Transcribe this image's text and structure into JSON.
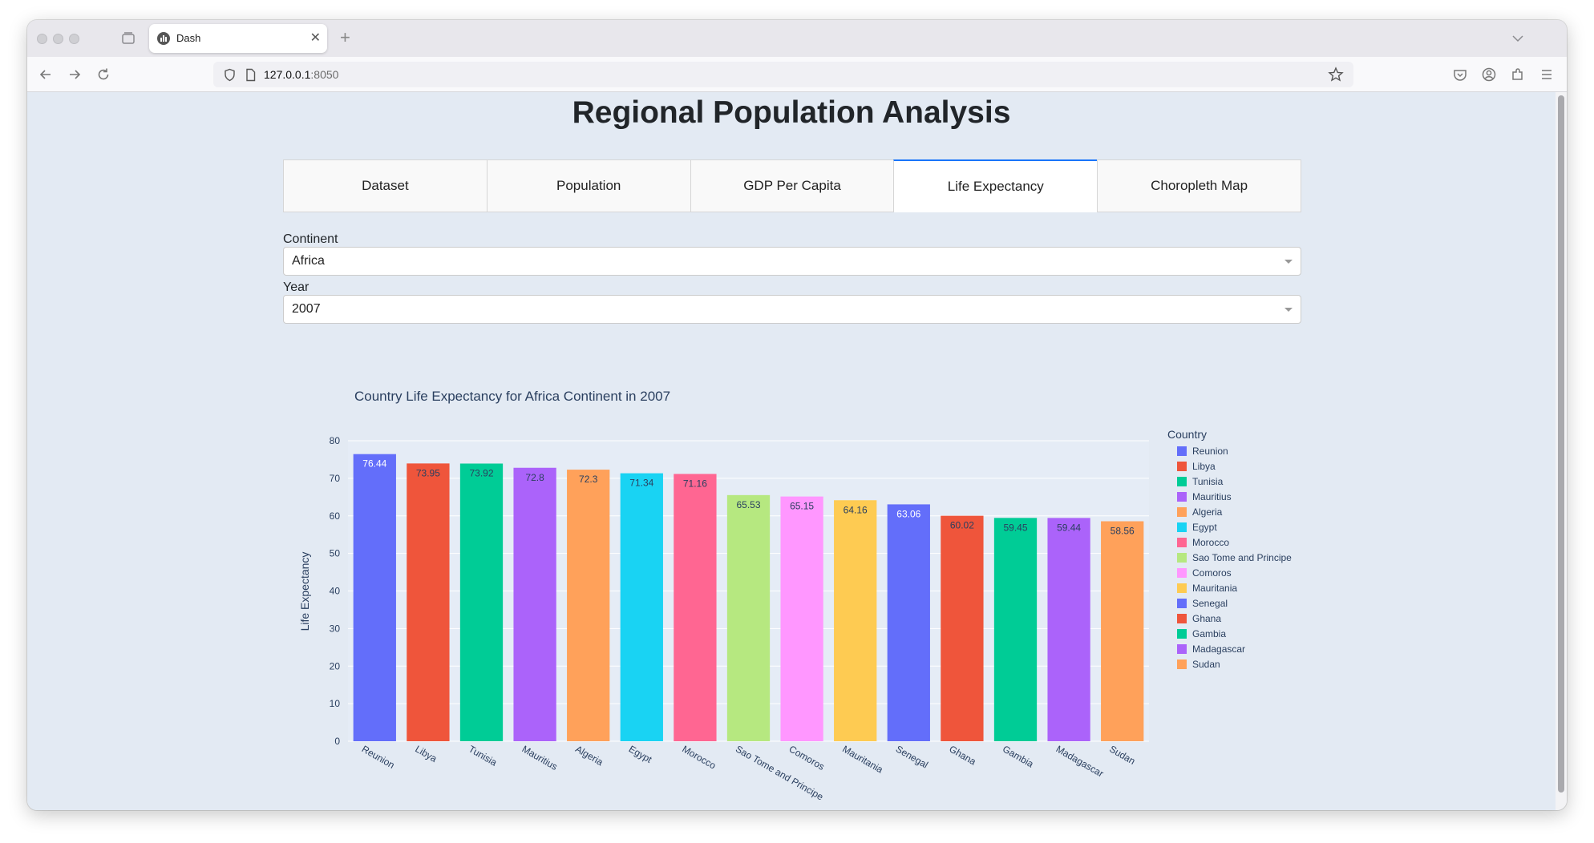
{
  "browser": {
    "tab_title": "Dash",
    "url_host": "127.0.0.1",
    "url_port": ":8050"
  },
  "page": {
    "heading": "Regional Population Analysis",
    "tabs": [
      {
        "label": "Dataset",
        "active": false
      },
      {
        "label": "Population",
        "active": false
      },
      {
        "label": "GDP Per Capita",
        "active": false
      },
      {
        "label": "Life Expectancy",
        "active": true
      },
      {
        "label": "Choropleth Map",
        "active": false
      }
    ],
    "continent_label": "Continent",
    "continent_value": "Africa",
    "year_label": "Year",
    "year_value": "2007"
  },
  "colors": {
    "accent": "#1975fa",
    "plot_bg": "#e5ecf6"
  },
  "chart_data": {
    "type": "bar",
    "title": "Country Life Expectancy for Africa Continent in 2007",
    "xlabel": "",
    "ylabel": "Life Expectancy",
    "ylim": [
      0,
      80
    ],
    "yticks": [
      0,
      10,
      20,
      30,
      40,
      50,
      60,
      70,
      80
    ],
    "legend_title": "Country",
    "legend_position": "right",
    "categories": [
      "Reunion",
      "Libya",
      "Tunisia",
      "Mauritius",
      "Algeria",
      "Egypt",
      "Morocco",
      "Sao Tome and Principe",
      "Comoros",
      "Mauritania",
      "Senegal",
      "Ghana",
      "Gambia",
      "Madagascar",
      "Sudan"
    ],
    "values": [
      76.44,
      73.95,
      73.92,
      72.8,
      72.3,
      71.34,
      71.16,
      65.53,
      65.15,
      64.16,
      63.06,
      60.02,
      59.45,
      59.44,
      58.56
    ],
    "labels": [
      "76.44",
      "73.95",
      "73.92",
      "72.8",
      "72.3",
      "71.34",
      "71.16",
      "65.53",
      "65.15",
      "64.16",
      "63.06",
      "60.02",
      "59.45",
      "59.44",
      "58.56"
    ],
    "bar_colors": [
      "#636efa",
      "#ef553b",
      "#00cc96",
      "#ab63fa",
      "#ffa15a",
      "#19d3f3",
      "#ff6692",
      "#b6e880",
      "#ff97ff",
      "#fecb52",
      "#636efa",
      "#ef553b",
      "#00cc96",
      "#ab63fa",
      "#ffa15a"
    ],
    "label_colors": [
      "#ffffff",
      "#2a3f5f",
      "#2a3f5f",
      "#2a3f5f",
      "#2a3f5f",
      "#2a3f5f",
      "#2a3f5f",
      "#2a3f5f",
      "#2a3f5f",
      "#2a3f5f",
      "#ffffff",
      "#2a3f5f",
      "#2a3f5f",
      "#2a3f5f",
      "#2a3f5f"
    ]
  }
}
